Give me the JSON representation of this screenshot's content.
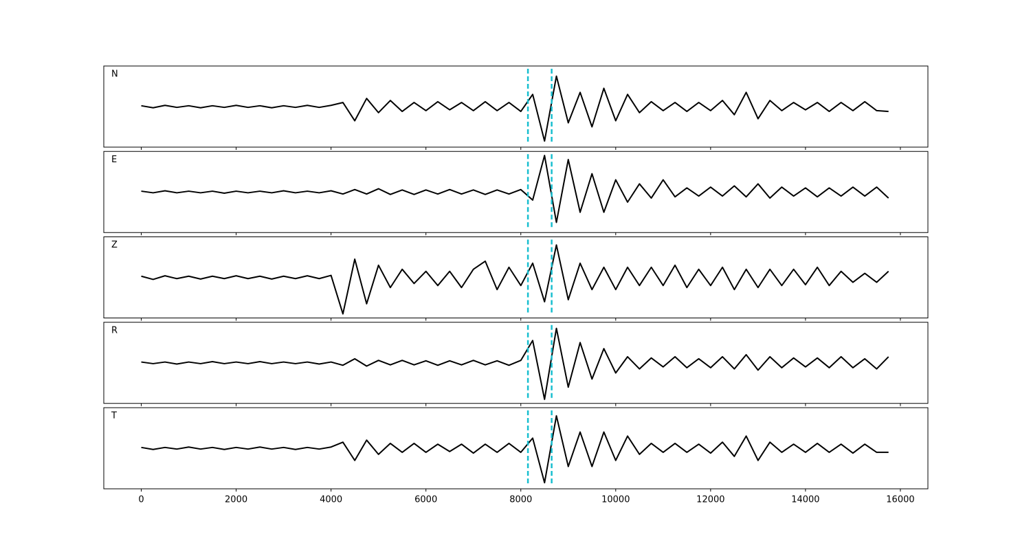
{
  "chart_data": [
    {
      "type": "line",
      "label": "N",
      "color": "#000000",
      "vline_color": "#17becf",
      "vlines": [
        8150,
        8650
      ],
      "xlim": [
        -790,
        16580
      ],
      "ylim": [
        -1,
        1
      ],
      "xticks": [
        0,
        2000,
        4000,
        6000,
        8000,
        10000,
        12000,
        14000,
        16000
      ],
      "x": [
        0,
        250,
        500,
        750,
        1000,
        1250,
        1500,
        1750,
        2000,
        2250,
        2500,
        2750,
        3000,
        3250,
        3500,
        3750,
        4000,
        4250,
        4500,
        4750,
        5000,
        5250,
        5500,
        5750,
        6000,
        6250,
        6500,
        6750,
        7000,
        7250,
        7500,
        7750,
        8000,
        8250,
        8500,
        8750,
        9000,
        9250,
        9500,
        9750,
        10000,
        10250,
        10500,
        10750,
        11000,
        11250,
        11500,
        11750,
        12000,
        12250,
        12500,
        12750,
        13000,
        13250,
        13500,
        13750,
        14000,
        14250,
        14500,
        14750,
        15000,
        15250,
        15500,
        15750
      ],
      "values": [
        0.02,
        -0.03,
        0.03,
        -0.02,
        0.02,
        -0.03,
        0.02,
        -0.02,
        0.03,
        -0.02,
        0.02,
        -0.03,
        0.02,
        -0.02,
        0.03,
        -0.02,
        0.03,
        0.1,
        -0.35,
        0.2,
        -0.15,
        0.15,
        -0.12,
        0.1,
        -0.1,
        0.12,
        -0.08,
        0.1,
        -0.1,
        0.12,
        -0.1,
        0.1,
        -0.12,
        0.3,
        -0.85,
        0.75,
        -0.4,
        0.35,
        -0.5,
        0.45,
        -0.35,
        0.3,
        -0.15,
        0.12,
        -0.1,
        0.1,
        -0.12,
        0.1,
        -0.1,
        0.15,
        -0.2,
        0.35,
        -0.3,
        0.15,
        -0.1,
        0.1,
        -0.08,
        0.1,
        -0.12,
        0.1,
        -0.1,
        0.12,
        -0.1,
        -0.12
      ]
    },
    {
      "type": "line",
      "label": "E",
      "color": "#000000",
      "vline_color": "#17becf",
      "vlines": [
        8150,
        8650
      ],
      "xlim": [
        -790,
        16580
      ],
      "ylim": [
        -1,
        1
      ],
      "xticks": [
        0,
        2000,
        4000,
        6000,
        8000,
        10000,
        12000,
        14000,
        16000
      ],
      "x": [
        0,
        250,
        500,
        750,
        1000,
        1250,
        1500,
        1750,
        2000,
        2250,
        2500,
        2750,
        3000,
        3250,
        3500,
        3750,
        4000,
        4250,
        4500,
        4750,
        5000,
        5250,
        5500,
        5750,
        6000,
        6250,
        6500,
        6750,
        7000,
        7250,
        7500,
        7750,
        8000,
        8250,
        8500,
        8750,
        9000,
        9250,
        9500,
        9750,
        10000,
        10250,
        10500,
        10750,
        11000,
        11250,
        11500,
        11750,
        12000,
        12250,
        12500,
        12750,
        13000,
        13250,
        13500,
        13750,
        14000,
        14250,
        14500,
        14750,
        15000,
        15250,
        15500,
        15750
      ],
      "values": [
        0.02,
        -0.02,
        0.03,
        -0.02,
        0.02,
        -0.02,
        0.02,
        -0.03,
        0.02,
        -0.02,
        0.02,
        -0.02,
        0.03,
        -0.02,
        0.02,
        -0.02,
        0.03,
        -0.05,
        0.06,
        -0.05,
        0.08,
        -0.06,
        0.05,
        -0.06,
        0.05,
        -0.05,
        0.06,
        -0.05,
        0.05,
        -0.06,
        0.05,
        -0.05,
        0.06,
        -0.2,
        0.9,
        -0.75,
        0.8,
        -0.5,
        0.45,
        -0.5,
        0.3,
        -0.25,
        0.2,
        -0.15,
        0.3,
        -0.12,
        0.1,
        -0.1,
        0.12,
        -0.1,
        0.15,
        -0.12,
        0.2,
        -0.15,
        0.12,
        -0.1,
        0.1,
        -0.12,
        0.1,
        -0.1,
        0.12,
        -0.1,
        0.12,
        -0.15
      ]
    },
    {
      "type": "line",
      "label": "Z",
      "color": "#000000",
      "vline_color": "#17becf",
      "vlines": [
        8150,
        8650
      ],
      "xlim": [
        -790,
        16580
      ],
      "ylim": [
        -1,
        1
      ],
      "xticks": [
        0,
        2000,
        4000,
        6000,
        8000,
        10000,
        12000,
        14000,
        16000
      ],
      "x": [
        0,
        250,
        500,
        750,
        1000,
        1250,
        1500,
        1750,
        2000,
        2250,
        2500,
        2750,
        3000,
        3250,
        3500,
        3750,
        4000,
        4250,
        4500,
        4750,
        5000,
        5250,
        5500,
        5750,
        6000,
        6250,
        6500,
        6750,
        7000,
        7250,
        7500,
        7750,
        8000,
        8250,
        8500,
        8750,
        9000,
        9250,
        9500,
        9750,
        10000,
        10250,
        10500,
        10750,
        11000,
        11250,
        11500,
        11750,
        12000,
        12250,
        12500,
        12750,
        13000,
        13250,
        13500,
        13750,
        14000,
        14250,
        14500,
        14750,
        15000,
        15250,
        15500,
        15750
      ],
      "values": [
        0.03,
        -0.05,
        0.04,
        -0.03,
        0.03,
        -0.04,
        0.03,
        -0.03,
        0.04,
        -0.03,
        0.03,
        -0.04,
        0.03,
        -0.03,
        0.04,
        -0.03,
        0.05,
        -0.9,
        0.45,
        -0.65,
        0.3,
        -0.25,
        0.2,
        -0.15,
        0.15,
        -0.2,
        0.15,
        -0.25,
        0.2,
        0.4,
        -0.3,
        0.25,
        -0.2,
        0.35,
        -0.6,
        0.8,
        -0.55,
        0.35,
        -0.3,
        0.25,
        -0.3,
        0.25,
        -0.2,
        0.25,
        -0.2,
        0.3,
        -0.25,
        0.2,
        -0.2,
        0.25,
        -0.3,
        0.2,
        -0.25,
        0.2,
        -0.2,
        0.2,
        -0.18,
        0.25,
        -0.2,
        0.15,
        -0.12,
        0.1,
        -0.12,
        0.15
      ]
    },
    {
      "type": "line",
      "label": "R",
      "color": "#000000",
      "vline_color": "#17becf",
      "vlines": [
        8150,
        8650
      ],
      "xlim": [
        -790,
        16580
      ],
      "ylim": [
        -1,
        1
      ],
      "xticks": [
        0,
        2000,
        4000,
        6000,
        8000,
        10000,
        12000,
        14000,
        16000
      ],
      "x": [
        0,
        250,
        500,
        750,
        1000,
        1250,
        1500,
        1750,
        2000,
        2250,
        2500,
        2750,
        3000,
        3250,
        3500,
        3750,
        4000,
        4250,
        4500,
        4750,
        5000,
        5250,
        5500,
        5750,
        6000,
        6250,
        6500,
        6750,
        7000,
        7250,
        7500,
        7750,
        8000,
        8250,
        8500,
        8750,
        9000,
        9250,
        9500,
        9750,
        10000,
        10250,
        10500,
        10750,
        11000,
        11250,
        11500,
        11750,
        12000,
        12250,
        12500,
        12750,
        13000,
        13250,
        13500,
        13750,
        14000,
        14250,
        14500,
        14750,
        15000,
        15250,
        15500,
        15750
      ],
      "values": [
        0.02,
        -0.02,
        0.02,
        -0.03,
        0.02,
        -0.02,
        0.03,
        -0.02,
        0.02,
        -0.02,
        0.03,
        -0.02,
        0.02,
        -0.02,
        0.02,
        -0.03,
        0.02,
        -0.06,
        0.1,
        -0.08,
        0.06,
        -0.05,
        0.06,
        -0.05,
        0.05,
        -0.06,
        0.05,
        -0.05,
        0.06,
        -0.05,
        0.05,
        -0.06,
        0.06,
        0.55,
        -0.9,
        0.85,
        -0.6,
        0.5,
        -0.4,
        0.35,
        -0.25,
        0.15,
        -0.15,
        0.12,
        -0.1,
        0.15,
        -0.12,
        0.1,
        -0.12,
        0.15,
        -0.15,
        0.2,
        -0.18,
        0.15,
        -0.12,
        0.12,
        -0.1,
        0.12,
        -0.12,
        0.15,
        -0.12,
        0.1,
        -0.15,
        0.15
      ]
    },
    {
      "type": "line",
      "label": "T",
      "color": "#000000",
      "vline_color": "#17becf",
      "vlines": [
        8150,
        8650
      ],
      "xlim": [
        -790,
        16580
      ],
      "ylim": [
        -1,
        1
      ],
      "xticks": [
        0,
        2000,
        4000,
        6000,
        8000,
        10000,
        12000,
        14000,
        16000
      ],
      "x": [
        0,
        250,
        500,
        750,
        1000,
        1250,
        1500,
        1750,
        2000,
        2250,
        2500,
        2750,
        3000,
        3250,
        3500,
        3750,
        4000,
        4250,
        4500,
        4750,
        5000,
        5250,
        5500,
        5750,
        6000,
        6250,
        6500,
        6750,
        7000,
        7250,
        7500,
        7750,
        8000,
        8250,
        8500,
        8750,
        9000,
        9250,
        9500,
        9750,
        10000,
        10250,
        10500,
        10750,
        11000,
        11250,
        11500,
        11750,
        12000,
        12250,
        12500,
        12750,
        13000,
        13250,
        13500,
        13750,
        14000,
        14250,
        14500,
        14750,
        15000,
        15250,
        15500,
        15750
      ],
      "values": [
        0.02,
        -0.03,
        0.02,
        -0.02,
        0.03,
        -0.02,
        0.02,
        -0.03,
        0.02,
        -0.02,
        0.03,
        -0.02,
        0.02,
        -0.03,
        0.02,
        -0.02,
        0.03,
        0.15,
        -0.3,
        0.2,
        -0.15,
        0.12,
        -0.1,
        0.12,
        -0.1,
        0.1,
        -0.08,
        0.1,
        -0.12,
        0.1,
        -0.1,
        0.12,
        -0.1,
        0.25,
        -0.85,
        0.8,
        -0.45,
        0.4,
        -0.45,
        0.4,
        -0.3,
        0.3,
        -0.15,
        0.12,
        -0.1,
        0.12,
        -0.1,
        0.1,
        -0.12,
        0.15,
        -0.2,
        0.3,
        -0.3,
        0.15,
        -0.1,
        0.1,
        -0.1,
        0.12,
        -0.1,
        0.1,
        -0.12,
        0.1,
        -0.1,
        -0.1
      ]
    }
  ]
}
